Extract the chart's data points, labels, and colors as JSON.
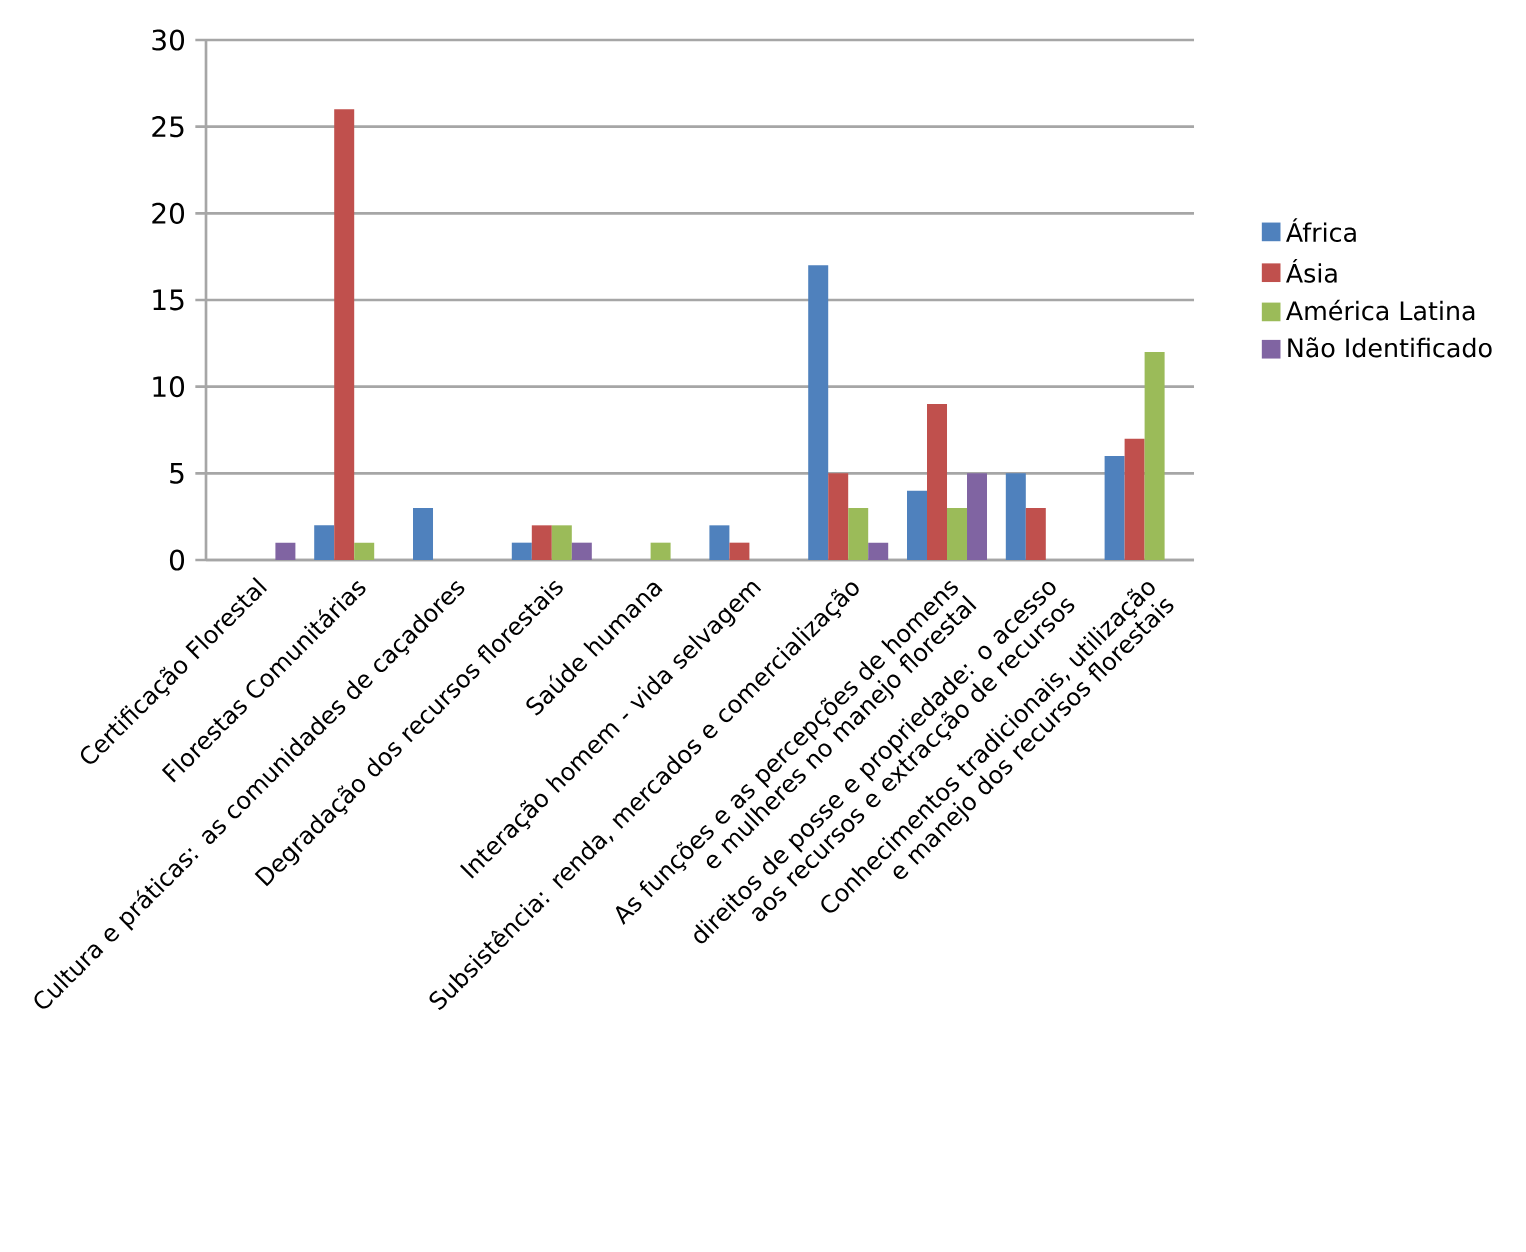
{
  "chart_data": {
    "type": "bar",
    "categories": [
      "Certificação Florestal",
      "Florestas Comunitárias",
      "Cultura e práticas: as comunidades de caçadores",
      "Degradação dos recursos florestais",
      "Saúde humana",
      "Interação homem - vida selvagem",
      "Subsistência: renda, mercados e comercialização",
      "As funções e as percepções de homens e mulheres no manejo florestal",
      "direitos de posse e propriedade: o acesso aos recursos e extracção de recursos",
      "Conhecimentos tradicionais, utilização e manejo dos recursos florestais"
    ],
    "series": [
      {
        "name": "África",
        "color": "#4f81bd",
        "values": [
          null,
          2,
          3,
          1,
          null,
          2,
          17,
          4,
          5,
          6
        ]
      },
      {
        "name": "Ásia",
        "color": "#c0504d",
        "values": [
          null,
          26,
          null,
          2,
          null,
          1,
          5,
          9,
          3,
          7
        ]
      },
      {
        "name": "América Latina",
        "color": "#9bbb59",
        "values": [
          null,
          1,
          null,
          2,
          1,
          null,
          3,
          3,
          null,
          12
        ]
      },
      {
        "name": "Não Identificado",
        "color": "#8064a2",
        "values": [
          1,
          null,
          null,
          1,
          null,
          null,
          1,
          5,
          null,
          null
        ]
      }
    ],
    "ylim": [
      0,
      30
    ],
    "yticks": [
      0,
      5,
      10,
      15,
      20,
      25,
      30
    ],
    "grid": "y",
    "legend": "right"
  }
}
